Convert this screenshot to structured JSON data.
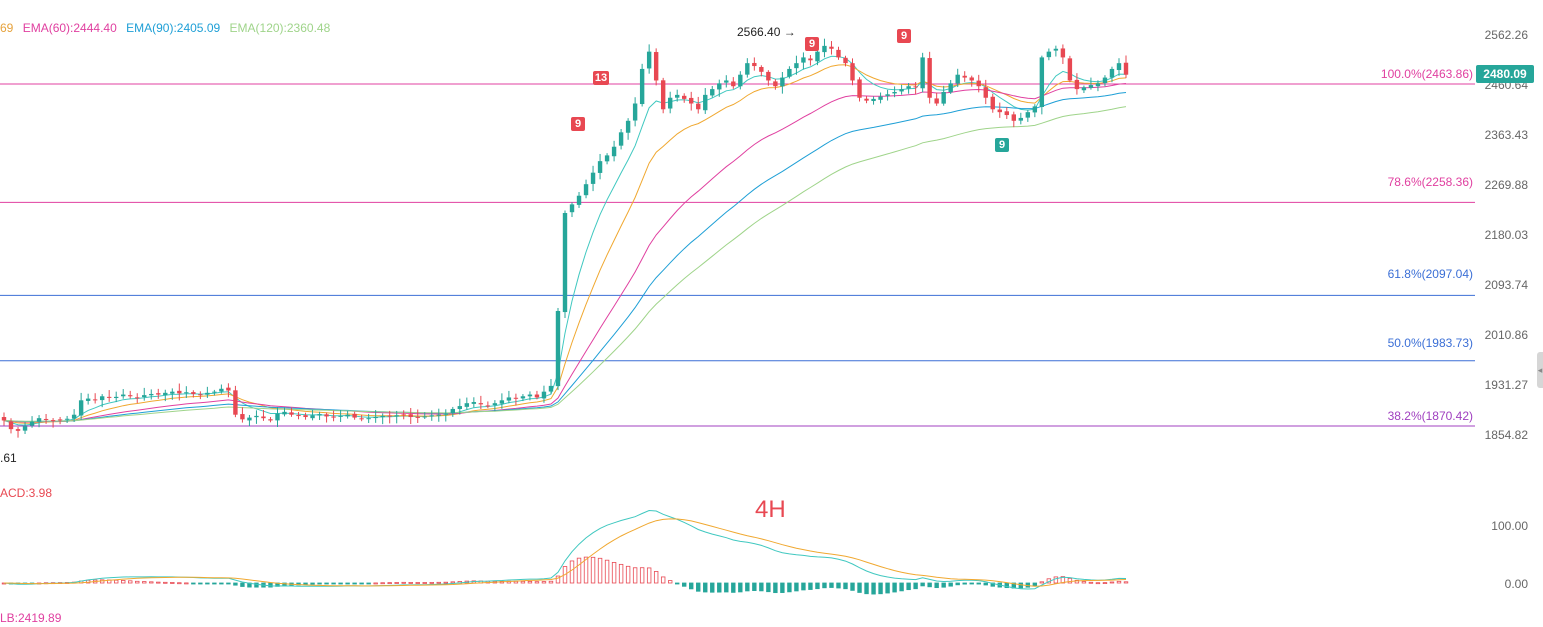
{
  "ema_legend": [
    {
      "text": "69",
      "color": "#e6a23c"
    },
    {
      "text": "EMA(60):2444.40",
      "color": "#e040a0"
    },
    {
      "text": "EMA(90):2405.09",
      "color": "#1e9fd6"
    },
    {
      "text": "EMA(120):2360.48",
      "color": "#9fd48a"
    }
  ],
  "price_axis_ticks": [
    "2562.26",
    "2460.64",
    "2363.43",
    "2269.88",
    "2180.03",
    "2093.74",
    "2010.86",
    "1931.27",
    "1854.82"
  ],
  "fib_levels": [
    {
      "label": "100.0%(2463.86)",
      "value": 2463.86,
      "color": "#e040a0"
    },
    {
      "label": "78.6%(2258.36)",
      "value": 2258.36,
      "color": "#e040a0"
    },
    {
      "label": "61.8%(2097.04)",
      "value": 2097.04,
      "color": "#3b6fd6"
    },
    {
      "label": "50.0%(1983.73)",
      "value": 1983.73,
      "color": "#3b6fd6"
    },
    {
      "label": "38.2%(1870.42)",
      "value": 1870.42,
      "color": "#a040c0"
    }
  ],
  "current_price": "2480.09",
  "high_annotation": "2566.40 →",
  "low_annotation": ".61",
  "timeframe": "4H",
  "macd_label": "ACD:3.98",
  "lb_label": "LB:2419.89",
  "macd_axis_ticks": [
    "100.00",
    "0.00"
  ],
  "td_markers": [
    {
      "text": "13",
      "kind": "red"
    },
    {
      "text": "9",
      "kind": "red"
    },
    {
      "text": "9",
      "kind": "red"
    },
    {
      "text": "9",
      "kind": "red"
    },
    {
      "text": "9",
      "kind": "green"
    }
  ],
  "colors": {
    "up": "#26a69a",
    "down": "#e84852",
    "ema_short1": "#40c8c0",
    "ema_short2": "#f0a830",
    "ema60": "#e040a0",
    "ema90": "#1e9fd6",
    "ema120": "#9fd48a"
  },
  "chart_data": {
    "type": "candlestick",
    "timeframe": "4H",
    "ylim": [
      1820,
      2600
    ],
    "price_path": [
      1880,
      1865,
      1862,
      1870,
      1878,
      1884,
      1882,
      1880,
      1881,
      1883,
      1890,
      1915,
      1918,
      1916,
      1922,
      1920,
      1921,
      1925,
      1922,
      1920,
      1924,
      1926,
      1925,
      1928,
      1930,
      1927,
      1929,
      1926,
      1924,
      1928,
      1930,
      1935,
      1932,
      1890,
      1882,
      1885,
      1888,
      1884,
      1880,
      1892,
      1895,
      1890,
      1888,
      1886,
      1889,
      1891,
      1887,
      1885,
      1888,
      1890,
      1885,
      1882,
      1884,
      1886,
      1888,
      1887,
      1889,
      1890,
      1886,
      1885,
      1887,
      1889,
      1890,
      1892,
      1900,
      1905,
      1910,
      1912,
      1908,
      1906,
      1910,
      1915,
      1920,
      1918,
      1922,
      1925,
      1920,
      1930,
      1940,
      2070,
      2240,
      2255,
      2270,
      2290,
      2310,
      2330,
      2340,
      2355,
      2380,
      2400,
      2430,
      2490,
      2520,
      2470,
      2420,
      2440,
      2445,
      2438,
      2430,
      2420,
      2445,
      2455,
      2465,
      2470,
      2460,
      2480,
      2500,
      2495,
      2485,
      2470,
      2460,
      2475,
      2490,
      2500,
      2510,
      2505,
      2520,
      2530,
      2525,
      2510,
      2500,
      2470,
      2440,
      2435,
      2438,
      2442,
      2446,
      2450,
      2455,
      2460,
      2458,
      2510,
      2440,
      2430,
      2450,
      2465,
      2480,
      2475,
      2470,
      2460,
      2440,
      2420,
      2415,
      2410,
      2400,
      2405,
      2415,
      2425,
      2510,
      2520,
      2525,
      2510,
      2470,
      2455,
      2458,
      2462,
      2465,
      2475,
      2490,
      2500,
      2480
    ],
    "macd_hist_peak": 100.0,
    "macd_zero": 0.0
  }
}
